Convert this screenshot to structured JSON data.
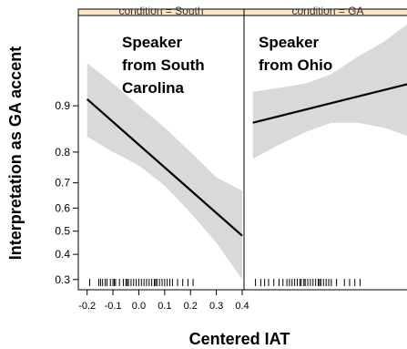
{
  "chart_data": {
    "type": "line",
    "ylabel": "Interpretation as GA accent",
    "xlabel": "Centered IAT",
    "y_ticks": [
      0.3,
      0.4,
      0.5,
      0.6,
      0.7,
      0.8,
      0.9
    ],
    "y_tick_labels": [
      "0.3",
      "0.4",
      "0.5",
      "0.6",
      "0.7",
      "0.8",
      "0.9"
    ],
    "x_ticks": [
      -0.2,
      -0.1,
      0.0,
      0.1,
      0.2,
      0.3,
      0.4
    ],
    "x_tick_labels": [
      "-0.2",
      "-0.1",
      "0.0",
      "0.1",
      "0.2",
      "0.3",
      "0.4"
    ],
    "xlim": [
      -0.22,
      0.4
    ],
    "ylim": [
      0.27,
      0.97
    ],
    "y_scale": "logit",
    "grid": false,
    "colors": {
      "line": "#000000",
      "band": "#d9d9d9",
      "strip": "#ffe5c2"
    },
    "panels": [
      {
        "annotation": [
          "Speaker",
          "from  South",
          "Carolina"
        ],
        "strip_label": "condition = South",
        "series": [
          {
            "x": [
              -0.2,
              0.4
            ],
            "y": [
              0.91,
              0.48
            ]
          }
        ],
        "band_x": [
          -0.2,
          -0.1,
          0.0,
          0.1,
          0.2,
          0.3,
          0.4
        ],
        "band_lower": [
          0.84,
          0.8,
          0.76,
          0.69,
          0.58,
          0.45,
          0.3
        ],
        "band_upper": [
          0.95,
          0.93,
          0.9,
          0.86,
          0.8,
          0.72,
          0.67
        ],
        "rug": [
          -0.19,
          -0.155,
          -0.148,
          -0.14,
          -0.13,
          -0.123,
          -0.11,
          -0.1,
          -0.095,
          -0.09,
          -0.075,
          -0.06,
          -0.05,
          -0.045,
          -0.04,
          -0.03,
          -0.02,
          -0.01,
          0.0,
          0.01,
          0.02,
          0.03,
          0.04,
          0.05,
          0.06,
          0.065,
          0.07,
          0.08,
          0.09,
          0.1,
          0.11,
          0.12,
          0.13,
          0.15,
          0.17,
          0.19,
          0.21
        ]
      },
      {
        "annotation": [
          "Speaker",
          "from Ohio"
        ],
        "strip_label": "condition = GA",
        "series": [
          {
            "x": [
              -0.2,
              0.4
            ],
            "y": [
              0.87,
              0.93
            ]
          }
        ],
        "band_x": [
          -0.2,
          -0.1,
          0.0,
          0.1,
          0.2,
          0.3,
          0.4
        ],
        "band_lower": [
          0.78,
          0.82,
          0.85,
          0.87,
          0.87,
          0.86,
          0.84
        ],
        "band_upper": [
          0.92,
          0.925,
          0.93,
          0.94,
          0.955,
          0.965,
          0.975
        ],
        "rug": [
          -0.19,
          -0.17,
          -0.155,
          -0.14,
          -0.12,
          -0.1,
          -0.085,
          -0.07,
          -0.06,
          -0.05,
          -0.04,
          -0.03,
          -0.02,
          -0.015,
          -0.005,
          0.0,
          0.01,
          0.02,
          0.03,
          0.04,
          0.05,
          0.055,
          0.06,
          0.07,
          0.08,
          0.09,
          0.1,
          0.12,
          0.15,
          0.17,
          0.19,
          0.21
        ]
      }
    ]
  }
}
